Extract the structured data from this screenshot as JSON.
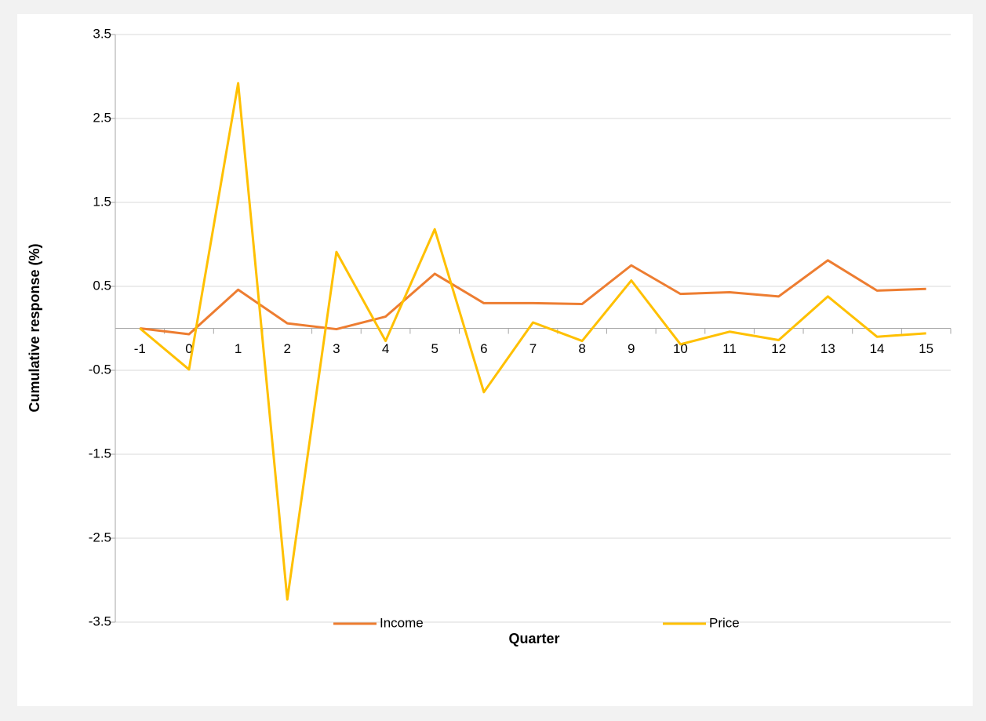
{
  "chart_data": {
    "type": "line",
    "x_label": "Quarter",
    "y_label": "Cumulative response (%)",
    "categories": [
      "-1",
      "0",
      "1",
      "2",
      "3",
      "4",
      "5",
      "6",
      "7",
      "8",
      "9",
      "10",
      "11",
      "12",
      "13",
      "14",
      "15"
    ],
    "series": [
      {
        "name": "Income",
        "color": "#ed7d31",
        "values": [
          0,
          -0.07,
          0.46,
          0.06,
          -0.01,
          0.14,
          0.65,
          0.3,
          0.3,
          0.29,
          0.75,
          0.41,
          0.43,
          0.38,
          0.81,
          0.45,
          0.47
        ]
      },
      {
        "name": "Price",
        "color": "#ffc000",
        "values": [
          0,
          -0.49,
          2.92,
          -3.23,
          0.91,
          -0.15,
          1.18,
          -0.76,
          0.07,
          -0.15,
          0.57,
          -0.19,
          -0.04,
          -0.14,
          0.38,
          -0.1,
          -0.06
        ]
      }
    ],
    "ylim": [
      -3.5,
      3.5
    ],
    "yticks": [
      -3.5,
      -2.5,
      -1.5,
      -0.5,
      0.5,
      1.5,
      2.5,
      3.5
    ],
    "grid": true,
    "legend": "bottom"
  }
}
